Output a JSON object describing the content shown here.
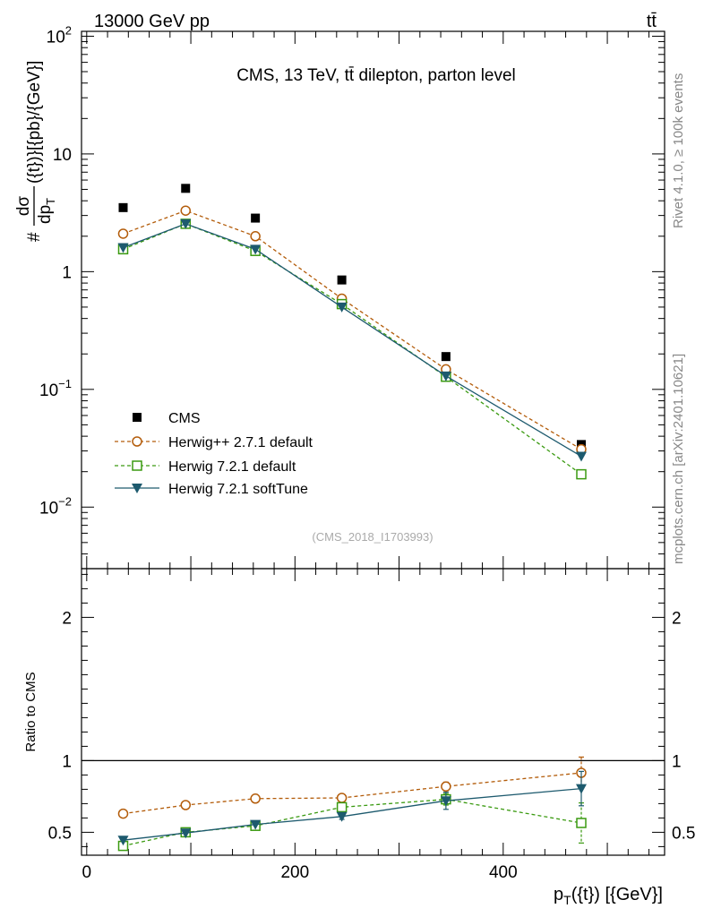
{
  "header": {
    "left_label": "13000 GeV pp",
    "right_label": "tt̄"
  },
  "side_labels": {
    "rivet": "Rivet 4.1.0, ≥ 100k events",
    "mcplots": "mcplots.cern.ch [arXiv:2401.10621]"
  },
  "colors": {
    "cms": "#000000",
    "herwigpp": "#b35c0a",
    "herwig721": "#3a9a10",
    "softtune": "#1d5a6e"
  },
  "chart_data": [
    {
      "type": "scatter",
      "title": "CMS, 13 TeV, tt̄ dilepton, parton level",
      "analysis_id": "(CMS_2018_I1703993)",
      "ylabel": "#dσ/dp_T({t})}[{pb}/{GeV}]",
      "ylabel_parts": {
        "hash": "#",
        "num": "dσ",
        "den_p": "dp",
        "den_sub": "T",
        "den_rest": "({t})}[{pb}/{GeV}]"
      },
      "yscale": "log",
      "xlim": [
        -5,
        555
      ],
      "ylim": [
        0.003,
        110
      ],
      "y_tick_labels": [
        {
          "value": 0.01,
          "base": "10",
          "exp": "−2"
        },
        {
          "value": 0.1,
          "base": "10",
          "exp": "−1"
        },
        {
          "value": 1,
          "base": "1",
          "exp": ""
        },
        {
          "value": 10,
          "base": "10",
          "exp": ""
        },
        {
          "value": 100,
          "base": "10",
          "exp": "2"
        }
      ],
      "legend_position": "bottom-left",
      "x": [
        35,
        95,
        162,
        245,
        345,
        475
      ],
      "series": [
        {
          "name": "CMS",
          "style": "data",
          "values": [
            3.5,
            5.1,
            2.85,
            0.85,
            0.19,
            0.034
          ]
        },
        {
          "name": "Herwig++ 2.7.1 default",
          "style": "circle-dashed",
          "values": [
            2.1,
            3.3,
            2.0,
            0.59,
            0.148,
            0.031
          ]
        },
        {
          "name": "Herwig 7.2.1 default",
          "style": "square-dashed",
          "values": [
            1.55,
            2.55,
            1.5,
            0.53,
            0.128,
            0.019
          ]
        },
        {
          "name": "Herwig 7.2.1 softTune",
          "style": "triangle-solid",
          "values": [
            1.6,
            2.55,
            1.55,
            0.5,
            0.13,
            0.027
          ]
        }
      ]
    },
    {
      "type": "line",
      "ylabel": "Ratio to CMS",
      "xlabel": "p_T({t}) [{GeV}]",
      "xlabel_parts": {
        "p": "p",
        "sub": "T",
        "rest": "({t}) [{GeV}]"
      },
      "xlim": [
        -5,
        555
      ],
      "ylim": [
        0.34,
        2.34
      ],
      "x_ticks": [
        0,
        200,
        400
      ],
      "y_ticks": [
        0.5,
        1,
        2
      ],
      "reference_line": 1,
      "x": [
        35,
        95,
        162,
        245,
        345,
        475
      ],
      "series": [
        {
          "name": "Herwig++ 2.7.1 default",
          "values": [
            0.63,
            0.69,
            0.735,
            0.74,
            0.82,
            0.915
          ],
          "errors": [
            0.0,
            0.0,
            0.0,
            0.02,
            0.03,
            0.11
          ]
        },
        {
          "name": "Herwig 7.2.1 default",
          "values": [
            0.405,
            0.5,
            0.545,
            0.675,
            0.73,
            0.565
          ],
          "errors": [
            0.0,
            0.0,
            0.0,
            0.02,
            0.04,
            0.14
          ]
        },
        {
          "name": "Herwig 7.2.1 softTune",
          "values": [
            0.445,
            0.495,
            0.555,
            0.61,
            0.72,
            0.805
          ],
          "errors": [
            0.0,
            0.0,
            0.0,
            0.02,
            0.06,
            0.12
          ]
        }
      ]
    }
  ]
}
